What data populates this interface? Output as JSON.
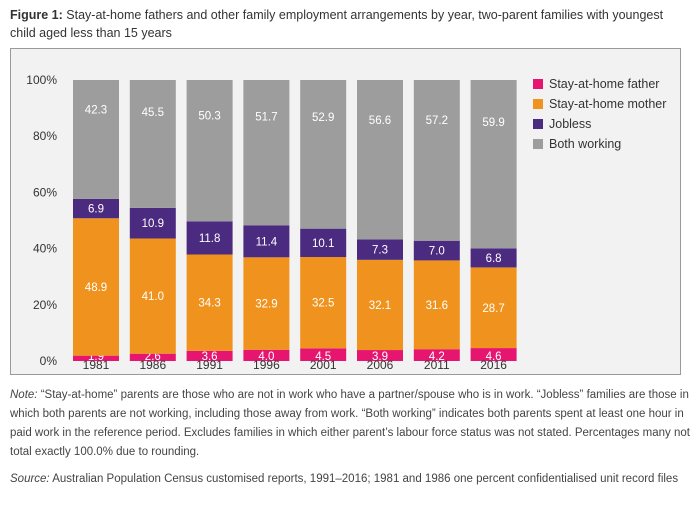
{
  "figure": {
    "label": "Figure 1:",
    "title": "Stay-at-home fathers and other family employment arrangements by year, two-parent families with youngest child aged less than 15 years"
  },
  "chart_data": {
    "type": "bar",
    "stacked": true,
    "categories": [
      "1981",
      "1986",
      "1991",
      "1996",
      "2001",
      "2006",
      "2011",
      "2016"
    ],
    "ylim": [
      0,
      100
    ],
    "yticks": [
      "0%",
      "20%",
      "40%",
      "60%",
      "80%",
      "100%"
    ],
    "ytick_values": [
      0,
      20,
      40,
      60,
      80,
      100
    ],
    "legend_position": "top-right",
    "grid": false,
    "series": [
      {
        "name": "Stay-at-home father",
        "color": "#e6156f",
        "values": [
          1.9,
          2.6,
          3.6,
          4.0,
          4.5,
          3.9,
          4.2,
          4.6
        ]
      },
      {
        "name": "Stay-at-home mother",
        "color": "#f0931e",
        "values": [
          48.9,
          41.0,
          34.3,
          32.9,
          32.5,
          32.1,
          31.6,
          28.7
        ]
      },
      {
        "name": "Jobless",
        "color": "#4b2b7f",
        "values": [
          6.9,
          10.9,
          11.8,
          11.4,
          10.1,
          7.3,
          7.0,
          6.8
        ]
      },
      {
        "name": "Both working",
        "color": "#9d9d9d",
        "values": [
          42.3,
          45.5,
          50.3,
          51.7,
          52.9,
          56.6,
          57.2,
          59.9
        ]
      }
    ],
    "value_labels": [
      [
        "1.9",
        "2.6",
        "3.6",
        "4.0",
        "4.5",
        "3.9",
        "4.2",
        "4.6"
      ],
      [
        "48.9",
        "41.0",
        "34.3",
        "32.9",
        "32.5",
        "32.1",
        "31.6",
        "28.7"
      ],
      [
        "6.9",
        "10.9",
        "11.8",
        "11.4",
        "10.1",
        "7.3",
        "7.0",
        "6.8"
      ],
      [
        "42.3",
        "45.5",
        "50.3",
        "51.7",
        "52.9",
        "56.6",
        "57.2",
        "59.9"
      ]
    ]
  },
  "note": {
    "label": "Note:",
    "text": " “Stay-at-home” parents are those who are not in work who have a partner/spouse who is in work. “Jobless” families are those in which both parents are not working, including those away from work. “Both working” indicates both parents spent at least one hour in paid work in the reference period. Excludes families in which either parent’s labour force status was not stated. Percentages many not total exactly 100.0% due to rounding."
  },
  "source": {
    "label": "Source:",
    "text": " Australian Population Census customised reports, 1991–2016; 1981 and 1986 one percent confidentialised unit record files"
  }
}
